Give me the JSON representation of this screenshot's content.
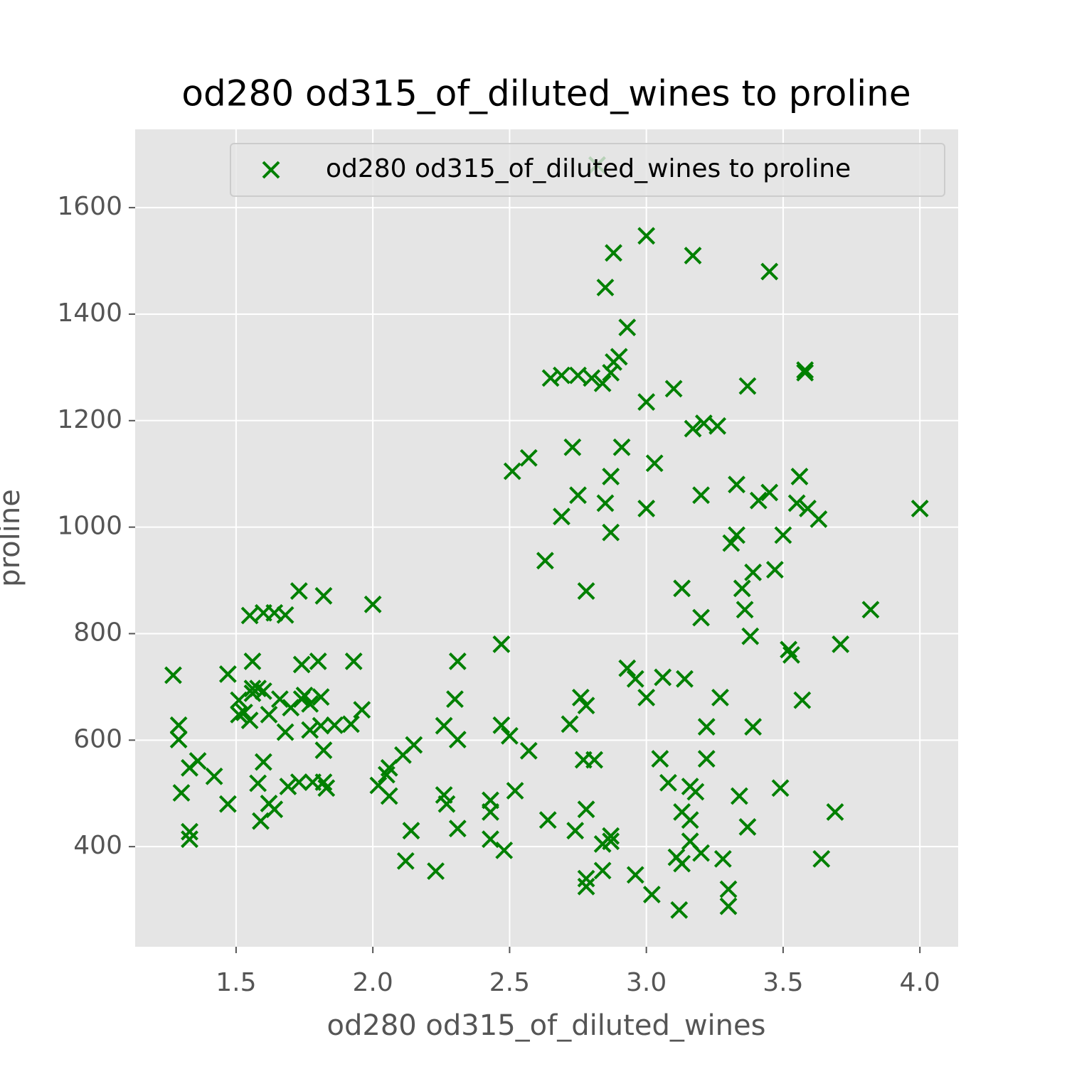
{
  "chart_data": {
    "type": "scatter",
    "title": "od280 od315_of_diluted_wines to proline",
    "x_label": "od280 od315_of_diluted_wines",
    "y_label": "proline",
    "xlim": [
      1.131,
      4.14
    ],
    "ylim": [
      212,
      1747
    ],
    "xticks": [
      1.5,
      {
        "value": 2,
        "label": "2.0"
      },
      2.5,
      {
        "value": 3,
        "label": "3.0"
      },
      3.5,
      {
        "value": 4,
        "label": "4.0"
      }
    ],
    "yticks": [
      400,
      600,
      800,
      1000,
      1200,
      1400,
      1600
    ],
    "grid": true,
    "legend": "upper right",
    "series": [
      {
        "name": "od280 od315_of_diluted_wines to proline",
        "color": "green",
        "marker": "x",
        "x": [
          3.45,
          3.0,
          3.17,
          2.88,
          2.85,
          2.82,
          2.93,
          2.9,
          2.88,
          2.87,
          2.84,
          2.8,
          2.65,
          2.69,
          2.75,
          3.58,
          3.58,
          3.37,
          3.1,
          3.0,
          3.17,
          3.21,
          3.26,
          2.73,
          2.91,
          2.57,
          2.51,
          3.03,
          2.87,
          3.56,
          3.33,
          3.45,
          3.41,
          3.2,
          2.75,
          2.85,
          3.55,
          3.59,
          3.0,
          4.0,
          3.63,
          2.69,
          2.87,
          3.5,
          3.33,
          3.31,
          2.63,
          3.39,
          3.47,
          3.13,
          3.35,
          2.78,
          3.36,
          3.82,
          3.2,
          3.38,
          3.52,
          3.53,
          3.71,
          2.93,
          2.96,
          3.06,
          3.14,
          3.0,
          3.27,
          2.76,
          2.78,
          3.57,
          2.72,
          3.22,
          3.39,
          3.05,
          3.22,
          2.77,
          2.81,
          3.08,
          3.16,
          3.18,
          3.49,
          3.34,
          3.13,
          3.16,
          3.69,
          3.37,
          2.74,
          2.78,
          2.87,
          2.87,
          2.84,
          3.16,
          3.2,
          3.11,
          3.13,
          3.28,
          3.64,
          2.84,
          2.78,
          2.78,
          2.96,
          3.02,
          3.3,
          3.3,
          3.12,
          2.64,
          2.52,
          2.47,
          2.5,
          2.57,
          2.47,
          2.43,
          2.43,
          2.43,
          2.48,
          2.31,
          2.3,
          2.31,
          2.26,
          2.26,
          2.27,
          2.31,
          2.23,
          2.14,
          2.12,
          2.15,
          2.11,
          2.06,
          2.05,
          2.02,
          2.06,
          2.0,
          1.96,
          1.92,
          1.93,
          1.86,
          1.81,
          1.82,
          1.82,
          1.83,
          1.81,
          1.82,
          1.73,
          1.8,
          1.74,
          1.75,
          1.74,
          1.77,
          1.7,
          1.77,
          1.78,
          1.73,
          1.69,
          1.68,
          1.64,
          1.6,
          1.55,
          1.56,
          1.47,
          1.56,
          1.58,
          1.6,
          1.56,
          1.66,
          1.51,
          1.53,
          1.51,
          1.55,
          1.62,
          1.68,
          1.6,
          1.58,
          1.59,
          1.62,
          1.64,
          1.47,
          1.42,
          1.36,
          1.33,
          1.3,
          1.33,
          1.33,
          1.27,
          1.29,
          1.29
        ],
        "values": [
          1480,
          1547,
          1510,
          1515,
          1450,
          1680,
          1375,
          1320,
          1310,
          1290,
          1270,
          1280,
          1280,
          1285,
          1285,
          1295,
          1290,
          1265,
          1260,
          1235,
          1185,
          1195,
          1190,
          1150,
          1150,
          1130,
          1105,
          1120,
          1095,
          1095,
          1080,
          1065,
          1050,
          1060,
          1060,
          1045,
          1045,
          1035,
          1035,
          1035,
          1015,
          1020,
          990,
          985,
          985,
          970,
          937,
          915,
          920,
          885,
          885,
          880,
          845,
          845,
          830,
          795,
          770,
          760,
          780,
          735,
          715,
          718,
          715,
          680,
          680,
          680,
          665,
          675,
          630,
          625,
          625,
          565,
          565,
          563,
          563,
          520,
          513,
          503,
          510,
          495,
          465,
          450,
          465,
          437,
          430,
          470,
          420,
          410,
          405,
          410,
          388,
          380,
          368,
          377,
          377,
          355,
          340,
          325,
          347,
          310,
          320,
          288,
          281,
          450,
          505,
          628,
          608,
          580,
          780,
          487,
          465,
          414,
          393,
          748,
          677,
          601,
          627,
          497,
          480,
          434,
          354,
          430,
          373,
          591,
          572,
          548,
          535,
          515,
          495,
          855,
          657,
          630,
          748,
          628,
          627,
          581,
          521,
          510,
          681,
          871,
          880,
          748,
          742,
          684,
          677,
          668,
          661,
          619,
          521,
          521,
          513,
          835,
          839,
          839,
          834,
          748,
          724,
          697,
          697,
          692,
          688,
          677,
          675,
          652,
          648,
          637,
          648,
          615,
          559,
          519,
          448,
          481,
          470,
          480,
          532,
          561,
          548,
          501,
          428,
          414,
          722,
          628,
          601
        ]
      }
    ]
  }
}
